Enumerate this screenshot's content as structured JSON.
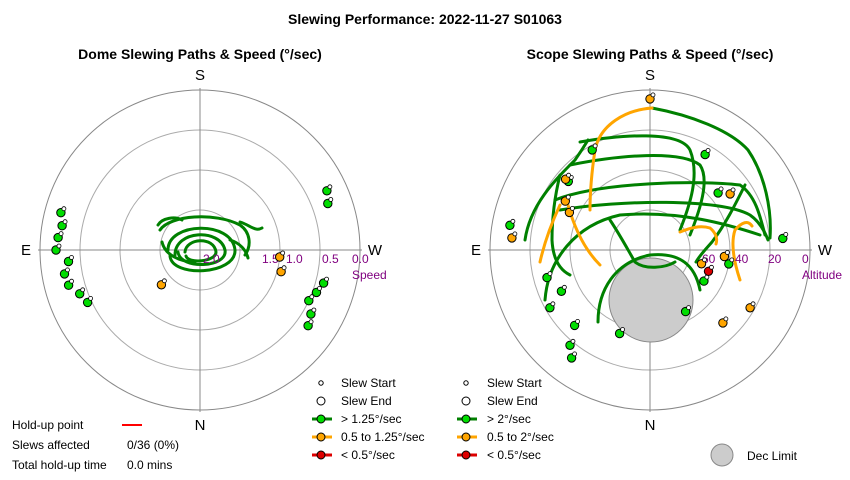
{
  "title": "Slewing Performance: 2022-11-27 S01063",
  "chart_data": [
    {
      "type": "scatter",
      "projection": "polar",
      "title": "Dome Slewing Paths & Speed (°/sec)",
      "compass": {
        "top": "S",
        "left": "E",
        "right": "W",
        "bottom": "N"
      },
      "radial_axis_label": "Speed",
      "radial_ticks": [
        "2.0",
        "1.5",
        "1.0",
        "0.5",
        "0.0"
      ],
      "radial_range": [
        2.0,
        0.0
      ],
      "series": [
        {
          "name": "> 1.25°/sec",
          "color": "#00dd00",
          "line_color": "#008000",
          "points": [
            {
              "az": 65,
              "v": 1.55
            },
            {
              "az": 70,
              "v": 1.6
            },
            {
              "az": 75,
              "v": 1.7
            },
            {
              "az": 80,
              "v": 1.72
            },
            {
              "az": 85,
              "v": 1.65
            },
            {
              "az": 90,
              "v": 1.8
            },
            {
              "az": 95,
              "v": 1.78
            },
            {
              "az": 100,
              "v": 1.75
            },
            {
              "az": 105,
              "v": 1.8
            },
            {
              "az": 285,
              "v": 1.6
            },
            {
              "az": 290,
              "v": 1.55
            },
            {
              "az": 295,
              "v": 1.5
            },
            {
              "az": 300,
              "v": 1.6
            },
            {
              "az": 305,
              "v": 1.65
            },
            {
              "az": 250,
              "v": 1.7
            },
            {
              "az": 245,
              "v": 1.75
            }
          ]
        },
        {
          "name": "0.5 to 1.25°/sec",
          "color": "#ffa500",
          "line_color": "#ffa500",
          "points": [
            {
              "az": 48,
              "v": 0.65
            },
            {
              "az": 285,
              "v": 1.05
            },
            {
              "az": 275,
              "v": 1.0
            }
          ]
        },
        {
          "name": "< 0.5°/sec",
          "color": "#dd0000",
          "line_color": "#dd0000",
          "points": []
        }
      ]
    },
    {
      "type": "scatter",
      "projection": "polar",
      "title": "Scope Slewing Paths & Speed (°/sec)",
      "compass": {
        "top": "S",
        "left": "E",
        "right": "W",
        "bottom": "N"
      },
      "radial_axis_label": "Altitude",
      "radial_ticks": [
        "60",
        "40",
        "20",
        "0"
      ],
      "radial_range": [
        90,
        0
      ],
      "dec_limit": {
        "label": "Dec Limit",
        "az": 0,
        "alt": 57,
        "radius_deg": 17
      },
      "series": [
        {
          "name": "> 2°/sec",
          "color": "#00dd00",
          "line_color": "#008000",
          "points": [
            {
              "az": 36,
              "alt": 15
            },
            {
              "az": 40,
              "alt": 20
            },
            {
              "az": 45,
              "alt": 30
            },
            {
              "az": 60,
              "alt": 25
            },
            {
              "az": 65,
              "alt": 35
            },
            {
              "az": 75,
              "alt": 30
            },
            {
              "az": 100,
              "alt": 10
            },
            {
              "az": 130,
              "alt": 30
            },
            {
              "az": 150,
              "alt": 25
            },
            {
              "az": 210,
              "alt": 28
            },
            {
              "az": 230,
              "alt": 40
            },
            {
              "az": 265,
              "alt": 15
            },
            {
              "az": 280,
              "alt": 45
            },
            {
              "az": 300,
              "alt": 55
            },
            {
              "az": 330,
              "alt": 50
            },
            {
              "az": 20,
              "alt": 40
            }
          ]
        },
        {
          "name": "0.5 to 2°/sec",
          "color": "#ffa500",
          "line_color": "#ffa500",
          "points": [
            {
              "az": 180,
              "alt": 5
            },
            {
              "az": 130,
              "alt": 28
            },
            {
              "az": 120,
              "alt": 35
            },
            {
              "az": 115,
              "alt": 40
            },
            {
              "az": 95,
              "alt": 12
            },
            {
              "az": 235,
              "alt": 35
            },
            {
              "az": 275,
              "alt": 48
            },
            {
              "az": 285,
              "alt": 60
            },
            {
              "az": 300,
              "alt": 25
            },
            {
              "az": 315,
              "alt": 32
            }
          ]
        },
        {
          "name": "< 0.5°/sec",
          "color": "#dd0000",
          "line_color": "#dd0000",
          "points": [
            {
              "az": 290,
              "alt": 55
            }
          ]
        }
      ]
    }
  ],
  "legend": {
    "dome": [
      {
        "label": "Slew Start",
        "kind": "start"
      },
      {
        "label": "Slew End",
        "kind": "end"
      },
      {
        "label": "> 1.25°/sec",
        "kind": "line",
        "color": "#008000",
        "fill": "#00dd00"
      },
      {
        "label": "0.5 to 1.25°/sec",
        "kind": "line",
        "color": "#ffa500",
        "fill": "#ffa500"
      },
      {
        "label": "< 0.5°/sec",
        "kind": "line",
        "color": "#dd0000",
        "fill": "#dd0000"
      }
    ],
    "scope": [
      {
        "label": "Slew Start",
        "kind": "start"
      },
      {
        "label": "Slew End",
        "kind": "end"
      },
      {
        "label": "> 2°/sec",
        "kind": "line",
        "color": "#008000",
        "fill": "#00dd00"
      },
      {
        "label": "0.5 to 2°/sec",
        "kind": "line",
        "color": "#ffa500",
        "fill": "#ffa500"
      },
      {
        "label": "< 0.5°/sec",
        "kind": "line",
        "color": "#dd0000",
        "fill": "#dd0000"
      }
    ]
  },
  "stats": {
    "holdup_label": "Hold-up point",
    "holdup_color": "#ff0000",
    "slews_label": "Slews affected",
    "slews_value": "0/36 (0%)",
    "total_label": "Total hold-up time",
    "total_value": "0.0 mins"
  }
}
